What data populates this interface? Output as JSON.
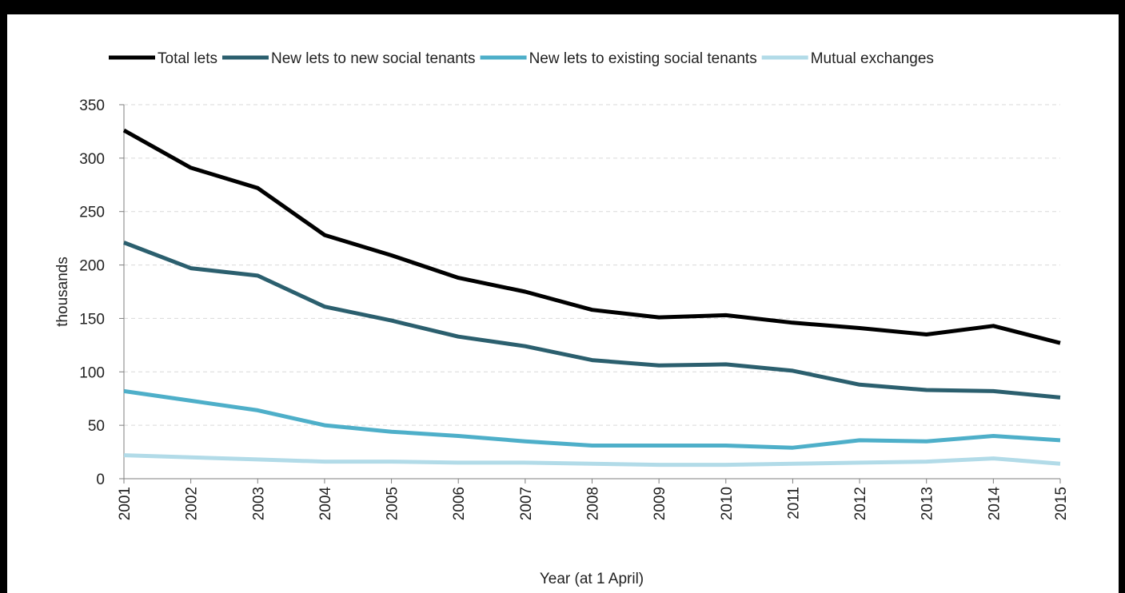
{
  "chart_data": {
    "type": "line",
    "title": "",
    "xlabel": "Year (at 1 April)",
    "ylabel": "thousands",
    "ylim": [
      0,
      350
    ],
    "yticks": [
      0,
      50,
      100,
      150,
      200,
      250,
      300,
      350
    ],
    "x": [
      "2001",
      "2002",
      "2003",
      "2004",
      "2005",
      "2006",
      "2007",
      "2008",
      "2009",
      "2010",
      "2011",
      "2012",
      "2013",
      "2014",
      "2015"
    ],
    "grid": true,
    "legend_position": "top",
    "series": [
      {
        "name": "Total lets",
        "color": "#000000",
        "values": [
          326,
          291,
          272,
          228,
          209,
          188,
          175,
          158,
          151,
          153,
          146,
          141,
          135,
          143,
          127
        ]
      },
      {
        "name": "New lets to new social tenants",
        "color": "#2b5f6e",
        "values": [
          221,
          197,
          190,
          161,
          148,
          133,
          124,
          111,
          106,
          107,
          101,
          88,
          83,
          82,
          76
        ]
      },
      {
        "name": "New lets to existing social tenants",
        "color": "#4eafc9",
        "values": [
          82,
          73,
          64,
          50,
          44,
          40,
          35,
          31,
          31,
          31,
          29,
          36,
          35,
          40,
          36
        ]
      },
      {
        "name": "Mutual exchanges",
        "color": "#b2dbe8",
        "values": [
          22,
          20,
          18,
          16,
          16,
          15,
          15,
          14,
          13,
          13,
          14,
          15,
          16,
          19,
          14
        ]
      }
    ]
  }
}
